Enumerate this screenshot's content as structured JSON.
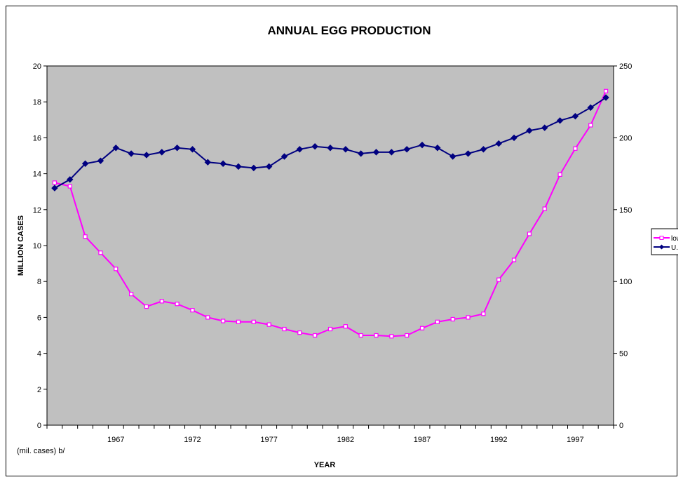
{
  "chart_data": {
    "type": "line",
    "title": "ANNUAL EGG PRODUCTION",
    "xlabel": "YEAR",
    "ylabel": "MILLION CASES",
    "note": "(mil. cases) b/",
    "x": [
      1963,
      1964,
      1965,
      1966,
      1967,
      1968,
      1969,
      1970,
      1971,
      1972,
      1973,
      1974,
      1975,
      1976,
      1977,
      1978,
      1979,
      1980,
      1981,
      1982,
      1983,
      1984,
      1985,
      1986,
      1987,
      1988,
      1989,
      1990,
      1991,
      1992,
      1993,
      1994,
      1995,
      1996,
      1997,
      1998,
      1999
    ],
    "x_tick_labels": [
      "1967",
      "1972",
      "1977",
      "1982",
      "1987",
      "1992",
      "1997"
    ],
    "y_left_ticks": [
      "0",
      "2",
      "4",
      "6",
      "8",
      "10",
      "12",
      "14",
      "16",
      "18",
      "20"
    ],
    "y_right_ticks": [
      "0",
      "50",
      "100",
      "150",
      "200",
      "250"
    ],
    "ylim_left": [
      0,
      20
    ],
    "ylim_right": [
      0,
      250
    ],
    "background_color": "#c0c0c0",
    "grid": false,
    "legend_position": "right",
    "series": [
      {
        "name": "low",
        "axis": "left",
        "color": "#ff00ff",
        "marker": "square",
        "values": [
          13.5,
          13.3,
          10.5,
          9.6,
          8.7,
          7.3,
          6.6,
          6.9,
          6.75,
          6.4,
          6.0,
          5.8,
          5.75,
          5.75,
          5.6,
          5.35,
          5.15,
          5.0,
          5.35,
          5.5,
          5.0,
          5.0,
          4.95,
          5.0,
          5.4,
          5.75,
          5.9,
          6.0,
          6.2,
          8.1,
          9.2,
          10.65,
          12.05,
          13.95,
          15.4,
          16.7,
          18.6
        ]
      },
      {
        "name": "U.S",
        "axis": "right",
        "color": "#000080",
        "marker": "diamond",
        "values": [
          165,
          171,
          182,
          184,
          193,
          189,
          188,
          190,
          193,
          192,
          183,
          182,
          180,
          179,
          180,
          187,
          192,
          194,
          193,
          192,
          189,
          190,
          190,
          192,
          195,
          193,
          187,
          189,
          192,
          196,
          200,
          205,
          207,
          212,
          215,
          221,
          228
        ]
      }
    ]
  }
}
